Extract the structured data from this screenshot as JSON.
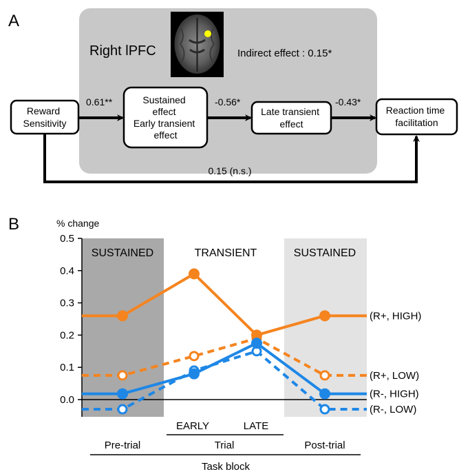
{
  "panel_a": {
    "panel_label": "A",
    "region_label": "Right lPFC",
    "indirect_effect": "Indirect effect : 0.15*",
    "nodes": {
      "reward": [
        "Reward",
        "Sensitivity"
      ],
      "sustained": [
        "Sustained",
        "effect",
        "Early transient",
        "effect"
      ],
      "late": [
        "Late transient",
        "effect"
      ],
      "rt": [
        "Reaction time",
        "facilitation"
      ]
    },
    "path_coefficients": {
      "reward_to_sustained": "0.61**",
      "sustained_to_late": "-0.56*",
      "late_to_rt": "-0.43*",
      "direct": "0.15 (n.s.)"
    },
    "colors": {
      "roi_box": "#c8c8c8",
      "roi_marker": "#ffff00"
    }
  },
  "panel_b": {
    "panel_label": "B",
    "ylabel_top": "% change",
    "region_labels": {
      "sustained_left": "SUSTAINED",
      "transient": "TRANSIENT",
      "sustained_right": "SUSTAINED"
    },
    "x_bottom": {
      "early": "EARLY",
      "late": "LATE",
      "pre_trial": "Pre-trial",
      "trial": "Trial",
      "post_trial": "Post-trial",
      "task_block": "Task block"
    },
    "colors": {
      "orange": "#f5841f",
      "blue": "#1e87e6",
      "shade_dark": "#a9a9a9",
      "shade_light": "#e3e3e3"
    }
  },
  "chart_data": {
    "type": "line",
    "x": [
      "Pre-trial",
      "Early",
      "Late",
      "Post-trial"
    ],
    "ylim": [
      -0.05,
      0.5
    ],
    "yticks": [
      "0.5",
      "0.4",
      "0.3",
      "0.2",
      "0.1",
      "0.0"
    ],
    "series": [
      {
        "name": "(R+, HIGH)",
        "values": [
          0.26,
          0.39,
          0.2,
          0.26
        ],
        "color": "#f5841f",
        "style": "solid",
        "marker": "filled"
      },
      {
        "name": "(R+, LOW)",
        "values": [
          0.075,
          0.135,
          0.19,
          0.075
        ],
        "color": "#f5841f",
        "style": "dashed",
        "marker": "open"
      },
      {
        "name": "(R-, HIGH)",
        "values": [
          0.018,
          0.08,
          0.175,
          0.018
        ],
        "color": "#1e87e6",
        "style": "solid",
        "marker": "filled"
      },
      {
        "name": "(R-, LOW)",
        "values": [
          -0.03,
          0.09,
          0.15,
          -0.03
        ],
        "color": "#1e87e6",
        "style": "dashed",
        "marker": "open"
      }
    ]
  }
}
